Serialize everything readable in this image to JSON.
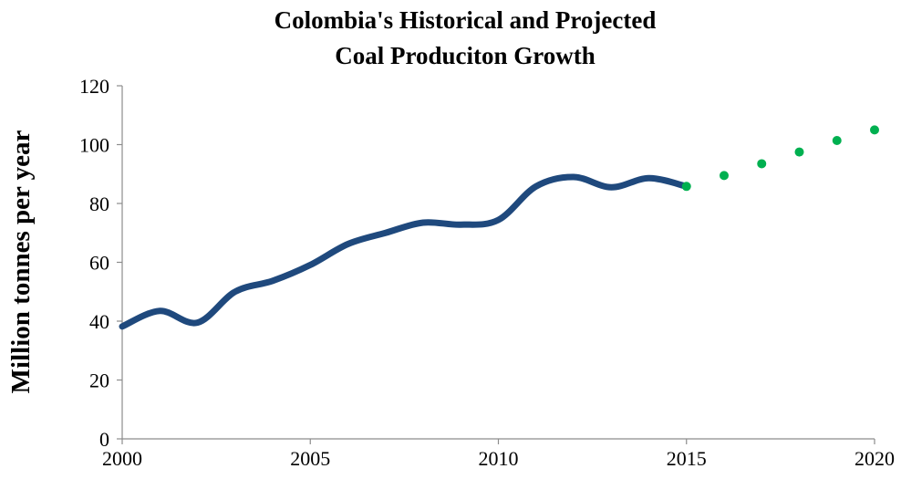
{
  "chart_data": {
    "type": "line",
    "title_lines": [
      "Colombia's Historical and Projected",
      "Coal Produciton Growth"
    ],
    "xlabel": "",
    "ylabel": "Million tonnes per year",
    "xlim": [
      2000,
      2020
    ],
    "ylim": [
      0,
      120
    ],
    "x_ticks": [
      "2000",
      "2005",
      "2010",
      "2015",
      "2020"
    ],
    "y_ticks": [
      "0",
      "20",
      "40",
      "60",
      "80",
      "100",
      "120"
    ],
    "grid": false,
    "legend": "none",
    "series": [
      {
        "style": "solid-smooth-line",
        "color": "#1f497d",
        "x": [
          2000,
          2001,
          2002,
          2003,
          2004,
          2005,
          2006,
          2007,
          2008,
          2009,
          2010,
          2011,
          2012,
          2013,
          2014,
          2015
        ],
        "y": [
          38.2,
          43.5,
          39.5,
          50,
          53.7,
          59.1,
          66.2,
          70,
          73.5,
          72.8,
          74.4,
          85.8,
          89,
          85.5,
          88.6,
          85.8
        ]
      },
      {
        "style": "markers",
        "color": "#00b050",
        "x": [
          2015,
          2016,
          2017,
          2018,
          2019,
          2020
        ],
        "y": [
          85.8,
          89.5,
          93.5,
          97.5,
          101.4,
          105
        ]
      }
    ]
  }
}
